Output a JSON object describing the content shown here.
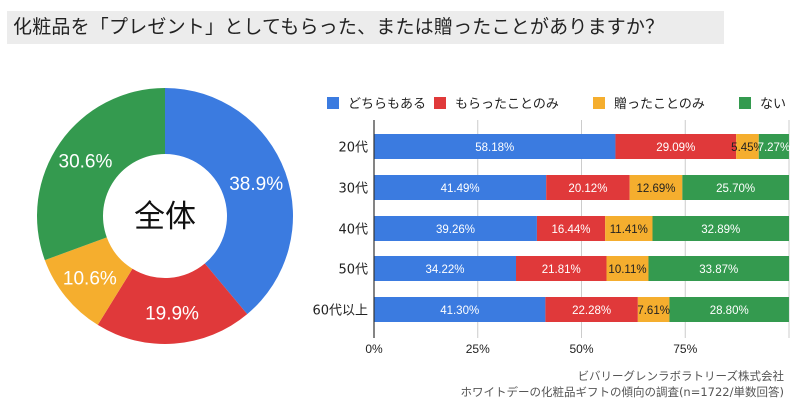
{
  "page": {
    "title": "化粧品を「プレゼント」としてもらった、または贈ったことがありますか？"
  },
  "colors": {
    "both": "#3b7be0",
    "received_only": "#e0393a",
    "gave_only": "#f5ae2e",
    "none": "#349a4f"
  },
  "chart_data": [
    {
      "type": "pie",
      "subtype": "donut",
      "center_label": "全体",
      "slices": [
        {
          "name": "どちらもある",
          "value": 38.9,
          "label": "38.9%",
          "color_key": "both"
        },
        {
          "name": "もらったことのみ",
          "value": 19.9,
          "label": "19.9%",
          "color_key": "received_only"
        },
        {
          "name": "贈ったことのみ",
          "value": 10.6,
          "label": "10.6%",
          "color_key": "gave_only"
        },
        {
          "name": "ない",
          "value": 30.6,
          "label": "30.6%",
          "color_key": "none"
        }
      ],
      "start": "top",
      "direction": "clockwise"
    },
    {
      "type": "bar",
      "orientation": "horizontal",
      "stacked": true,
      "categories": [
        "20代",
        "30代",
        "40代",
        "50代",
        "60代以上"
      ],
      "series": [
        {
          "name": "どちらもある",
          "color_key": "both",
          "values": [
            58.18,
            41.49,
            39.26,
            34.22,
            41.3
          ],
          "labels": [
            "58.18%",
            "41.49%",
            "39.26%",
            "34.22%",
            "41.30%"
          ]
        },
        {
          "name": "もらったことのみ",
          "color_key": "received_only",
          "values": [
            29.09,
            20.12,
            16.44,
            21.81,
            22.28
          ],
          "labels": [
            "29.09%",
            "20.12%",
            "16.44%",
            "21.81%",
            "22.28%"
          ]
        },
        {
          "name": "贈ったことのみ",
          "color_key": "gave_only",
          "values": [
            5.45,
            12.69,
            11.41,
            10.11,
            7.61
          ],
          "labels": [
            "5.45%",
            "12.69%",
            "11.41%",
            "10.11%",
            "7.61%"
          ]
        },
        {
          "name": "ない",
          "color_key": "none",
          "values": [
            7.27,
            25.7,
            32.89,
            33.87,
            28.8
          ],
          "labels": [
            "7.27%",
            "25.70%",
            "32.89%",
            "33.87%",
            "28.80%"
          ]
        }
      ],
      "xlim": [
        0,
        100
      ],
      "xticks": [
        "0%",
        "25%",
        "50%",
        "75%"
      ],
      "xtick_values": [
        0,
        25,
        50,
        75
      ],
      "gridlines": [
        0,
        25,
        50,
        75,
        100
      ],
      "grid": true,
      "legend": {
        "position": "top",
        "entries": [
          "どちらもある",
          "もらったことのみ",
          "贈ったことのみ",
          "ない"
        ]
      }
    }
  ],
  "credit": {
    "line1": "ビバリーグレンラボラトリーズ株式会社",
    "line2": "ホワイトデーの化粧品ギフトの傾向の調査(n=1722/単数回答)"
  }
}
